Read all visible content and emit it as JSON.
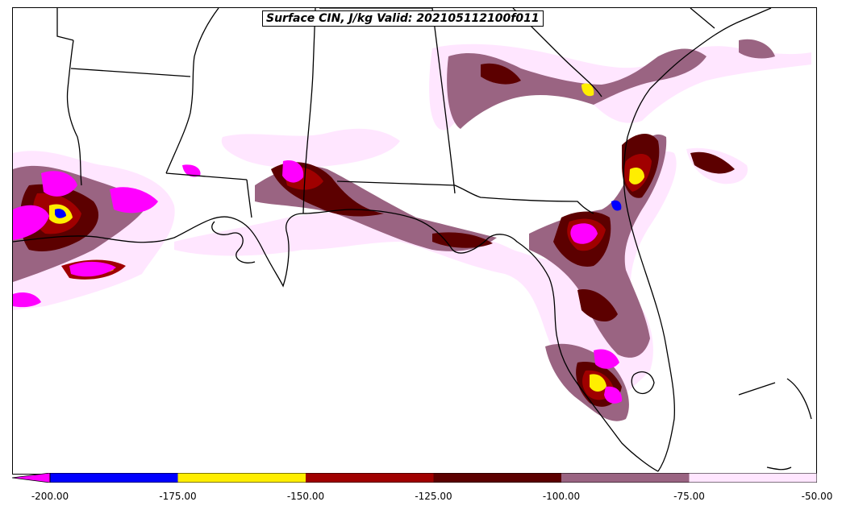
{
  "title": "Surface CIN, J/kg Valid: 202105112100f011",
  "colors": {
    "lt_neg200": "#ff00ff",
    "neg200_neg175": "#0000ff",
    "neg175_neg150": "#ffee00",
    "neg150_neg125": "#a00000",
    "neg125_neg100": "#5c0000",
    "neg100_neg75": "#9a6482",
    "neg75_neg50": "#ffe6ff",
    "coast": "#000000"
  },
  "colorbar": {
    "ticks": [
      "-200.00",
      "-175.00",
      "-150.00",
      "-125.00",
      "-100.00",
      "-75.00",
      "-50.00"
    ],
    "bins": [
      {
        "color": "#0000ff"
      },
      {
        "color": "#ffee00"
      },
      {
        "color": "#a00000"
      },
      {
        "color": "#5c0000"
      },
      {
        "color": "#9a6482"
      },
      {
        "color": "#ffe6ff"
      }
    ],
    "extend": "min"
  }
}
